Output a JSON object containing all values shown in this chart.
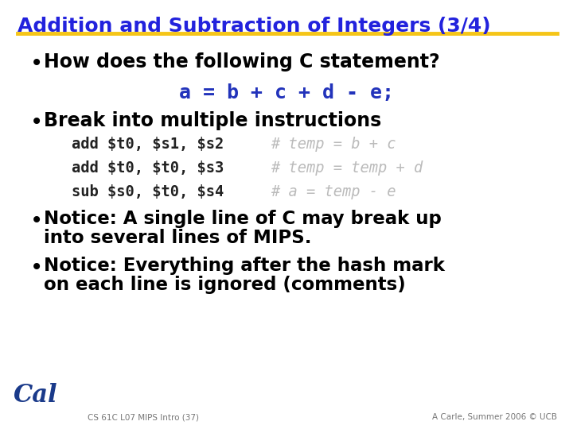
{
  "title": "Addition and Subtraction of Integers (3/4)",
  "title_color": "#2222DD",
  "title_underline_color": "#F5C518",
  "background_color": "#FFFFFF",
  "bullet1": "How does the following C statement?",
  "code_line": "a = b + c + d - e;",
  "bullet2": "Break into multiple instructions",
  "code1_black": "add $t0, $s1, $s2",
  "code1_gray": "# temp = b + c",
  "code2_black": "add $t0, $t0, $s3",
  "code2_gray": "# temp = temp + d",
  "code3_black": "sub $s0, $t0, $s4",
  "code3_gray": "# a = temp - e",
  "bullet3_line1": "Notice: A single line of C may break up",
  "bullet3_line2": "into several lines of MIPS.",
  "bullet4_line1": "Notice: Everything after the hash mark",
  "bullet4_line2": "on each line is ignored (comments)",
  "footer_left": "CS 61C L07 MIPS Intro (37)",
  "footer_right": "A Carle, Summer 2006 © UCB",
  "bullet_color": "#000000",
  "code_black_color": "#222222",
  "code_gray_color": "#BBBBBB",
  "code_blue_color": "#2233BB",
  "footer_color": "#777777"
}
